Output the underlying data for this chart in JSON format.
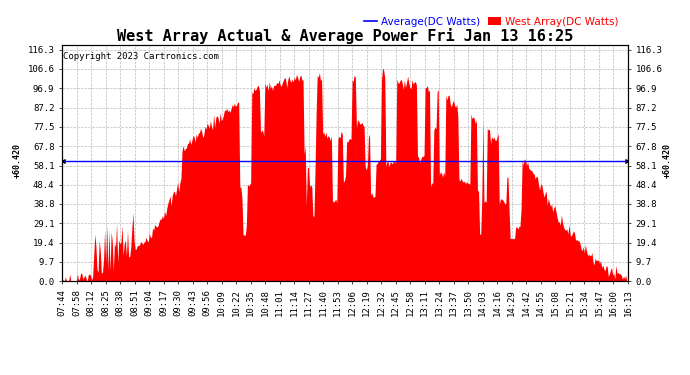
{
  "title": "West Array Actual & Average Power Fri Jan 13 16:25",
  "copyright": "Copyright 2023 Cartronics.com",
  "average_label": "Average(DC Watts)",
  "west_label": "West Array(DC Watts)",
  "average_value": 60.42,
  "ymin": 0.0,
  "ymax": 116.3,
  "yticks": [
    0.0,
    9.7,
    19.4,
    29.1,
    38.8,
    48.4,
    58.1,
    67.8,
    77.5,
    87.2,
    96.9,
    106.6,
    116.3
  ],
  "ytick_labels": [
    "0.0",
    "9.7",
    "19.4",
    "29.1",
    "38.8",
    "48.4",
    "58.1",
    "67.8",
    "77.5",
    "87.2",
    "96.9",
    "106.6",
    "116.3"
  ],
  "title_fontsize": 11,
  "legend_fontsize": 7.5,
  "tick_fontsize": 6.5,
  "copyright_fontsize": 6.5,
  "background_color": "#ffffff",
  "fill_color": "#ff0000",
  "line_color": "#0000ff",
  "avg_label_color": "#000000",
  "grid_color": "#aaaaaa",
  "xtick_labels": [
    "07:44",
    "07:58",
    "08:12",
    "08:25",
    "08:38",
    "08:51",
    "09:04",
    "09:17",
    "09:30",
    "09:43",
    "09:56",
    "10:09",
    "10:22",
    "10:35",
    "10:48",
    "11:01",
    "11:14",
    "11:27",
    "11:40",
    "11:53",
    "12:06",
    "12:19",
    "12:32",
    "12:45",
    "12:58",
    "13:11",
    "13:24",
    "13:37",
    "13:50",
    "14:03",
    "14:16",
    "14:29",
    "14:42",
    "14:55",
    "15:08",
    "15:21",
    "15:34",
    "15:47",
    "16:00",
    "16:13"
  ],
  "n_points": 520,
  "avg_annotation": "60.420"
}
